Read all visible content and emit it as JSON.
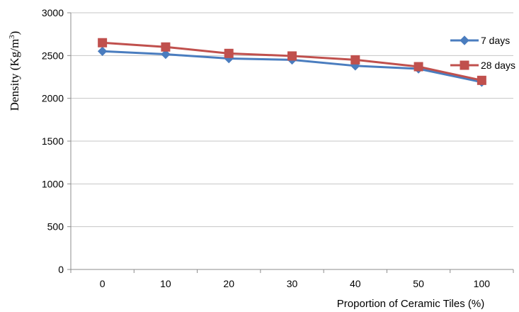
{
  "chart_data": {
    "type": "line",
    "categories": [
      "0",
      "10",
      "20",
      "30",
      "40",
      "50",
      "100"
    ],
    "series": [
      {
        "name": "7 days",
        "values": [
          2550,
          2515,
          2465,
          2450,
          2380,
          2345,
          2190
        ],
        "color": "#4a7dbf",
        "marker": "diamond"
      },
      {
        "name": "28 days",
        "values": [
          2650,
          2600,
          2525,
          2495,
          2450,
          2370,
          2210
        ],
        "color": "#c0504d",
        "marker": "square"
      }
    ],
    "ylim": [
      0,
      3000
    ],
    "yticks": [
      0,
      500,
      1000,
      1500,
      2000,
      2500,
      3000
    ],
    "xlabel": "Proportion of Ceramic Tiles (%)",
    "ylabel_main": "Density (Kg/m",
    "ylabel_sup": "3",
    "ylabel_end": ")",
    "legend_position": "right",
    "grid": true
  }
}
